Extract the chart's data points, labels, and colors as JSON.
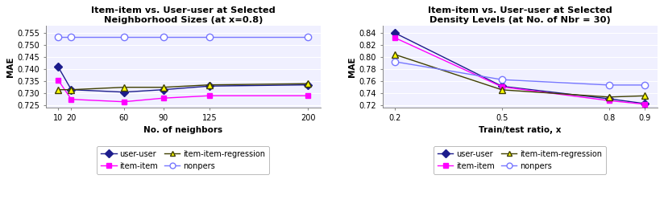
{
  "chart1": {
    "title": "Item-item vs. User-user at Selected\nNeighborhood Sizes (at x=0.8)",
    "xlabel": "No. of neighbors",
    "ylabel": "MAE",
    "x": [
      10,
      20,
      60,
      90,
      125,
      200
    ],
    "user_user": [
      0.741,
      0.7315,
      0.7305,
      0.7315,
      0.733,
      0.7335
    ],
    "item_item": [
      0.7355,
      0.7275,
      0.7265,
      0.728,
      0.729,
      0.729
    ],
    "item_item_regression": [
      0.7315,
      0.7315,
      0.7325,
      0.7325,
      0.7335,
      0.734
    ],
    "nonpers": [
      0.7535,
      0.7535,
      0.7535,
      0.7535,
      0.7535,
      0.7535
    ],
    "ylim": [
      0.724,
      0.758
    ],
    "yticks": [
      0.725,
      0.73,
      0.735,
      0.74,
      0.745,
      0.75,
      0.755
    ]
  },
  "chart2": {
    "title": "Item-item vs. User-user at Selected\nDensity Levels (at No. of Nbr = 30)",
    "xlabel": "Train/test ratio, x",
    "ylabel": "MAE",
    "x": [
      0.2,
      0.5,
      0.8,
      0.9
    ],
    "user_user": [
      0.84,
      0.751,
      0.73,
      0.722
    ],
    "item_item": [
      0.832,
      0.75,
      0.727,
      0.721
    ],
    "item_item_regression": [
      0.804,
      0.745,
      0.733,
      0.735
    ],
    "nonpers": [
      0.792,
      0.762,
      0.753,
      0.753
    ],
    "ylim": [
      0.715,
      0.852
    ],
    "yticks": [
      0.72,
      0.74,
      0.76,
      0.78,
      0.8,
      0.82,
      0.84
    ]
  },
  "line_user_user_color": "#1C1C8C",
  "line_item_item_color": "#FF00FF",
  "line_regression_color": "#404000",
  "line_nonpers_color": "#7777FF",
  "marker_regression_face": "#FFFF00",
  "bg_color": "#F0F0FF"
}
